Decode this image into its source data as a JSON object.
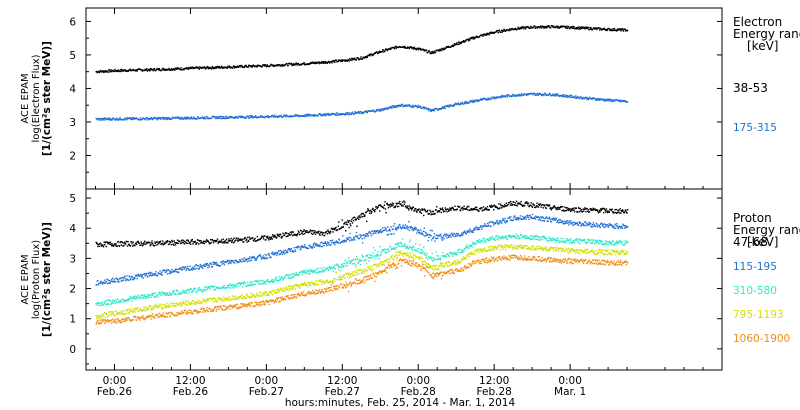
{
  "chart_data": [
    {
      "type": "scatter",
      "panel": "electron",
      "ylabel_lines": [
        "ACE EPAM",
        "log(Electron Flux)",
        "[1/(cm²s ster MeV)]"
      ],
      "ylim": [
        1,
        6.4
      ],
      "yticks": [
        2,
        3,
        4,
        5,
        6
      ],
      "legend_title": [
        "Electron",
        "Energy range",
        "[keV]"
      ],
      "legend_placement": "right",
      "series": [
        {
          "name": "38-53",
          "color": "#000000",
          "x": [
            -3,
            0,
            6,
            12,
            18,
            24,
            30,
            33,
            36,
            39,
            42,
            45,
            48,
            50,
            54,
            57,
            60,
            63,
            66,
            69,
            72,
            75,
            78,
            81
          ],
          "y": [
            4.52,
            4.55,
            4.58,
            4.62,
            4.66,
            4.7,
            4.76,
            4.8,
            4.85,
            4.93,
            5.12,
            5.28,
            5.2,
            5.08,
            5.35,
            5.55,
            5.7,
            5.8,
            5.85,
            5.86,
            5.84,
            5.81,
            5.78,
            5.76
          ]
        },
        {
          "name": "175-315",
          "color": "#1f6fd6",
          "x": [
            -3,
            0,
            6,
            12,
            18,
            24,
            30,
            33,
            36,
            39,
            42,
            45,
            48,
            50,
            54,
            57,
            60,
            63,
            66,
            69,
            72,
            75,
            78,
            81
          ],
          "y": [
            3.1,
            3.11,
            3.12,
            3.14,
            3.16,
            3.18,
            3.21,
            3.24,
            3.26,
            3.3,
            3.38,
            3.52,
            3.48,
            3.36,
            3.55,
            3.65,
            3.75,
            3.82,
            3.85,
            3.84,
            3.78,
            3.72,
            3.67,
            3.63
          ]
        }
      ]
    },
    {
      "type": "scatter",
      "panel": "proton",
      "ylabel_lines": [
        "ACE EPAM",
        "log(Proton Flux)",
        "[1/(cm²s ster MeV)]"
      ],
      "ylim": [
        -0.7,
        5.3
      ],
      "yticks": [
        0,
        1,
        2,
        3,
        4,
        5
      ],
      "legend_title": [
        "Proton",
        "Energy range",
        "[keV]"
      ],
      "legend_placement": "right",
      "series": [
        {
          "name": "47-68",
          "color": "#000000",
          "x": [
            -3,
            0,
            6,
            12,
            18,
            24,
            30,
            33,
            36,
            39,
            42,
            45,
            48,
            50,
            54,
            57,
            60,
            63,
            66,
            69,
            72,
            75,
            78,
            81
          ],
          "y": [
            3.48,
            3.5,
            3.52,
            3.56,
            3.6,
            3.7,
            3.9,
            3.85,
            4.1,
            4.45,
            4.75,
            4.8,
            4.6,
            4.55,
            4.7,
            4.65,
            4.72,
            4.85,
            4.8,
            4.7,
            4.65,
            4.62,
            4.6,
            4.58
          ]
        },
        {
          "name": "115-195",
          "color": "#1f6fd6",
          "x": [
            -3,
            0,
            6,
            12,
            18,
            24,
            30,
            33,
            36,
            39,
            42,
            45,
            48,
            50,
            54,
            57,
            60,
            63,
            66,
            69,
            72,
            75,
            78,
            81
          ],
          "y": [
            2.2,
            2.3,
            2.5,
            2.7,
            2.9,
            3.1,
            3.4,
            3.5,
            3.6,
            3.75,
            3.95,
            4.1,
            3.95,
            3.7,
            3.8,
            4.0,
            4.2,
            4.35,
            4.4,
            4.3,
            4.2,
            4.15,
            4.1,
            4.08
          ]
        },
        {
          "name": "310-580",
          "color": "#2ee6c8",
          "x": [
            -3,
            0,
            6,
            12,
            18,
            24,
            30,
            33,
            36,
            39,
            42,
            45,
            48,
            50,
            54,
            57,
            60,
            63,
            66,
            69,
            72,
            75,
            78,
            81
          ],
          "y": [
            1.5,
            1.6,
            1.8,
            1.95,
            2.1,
            2.25,
            2.55,
            2.65,
            2.8,
            3.0,
            3.2,
            3.5,
            3.3,
            3.0,
            3.2,
            3.55,
            3.7,
            3.75,
            3.72,
            3.65,
            3.6,
            3.57,
            3.54,
            3.52
          ]
        },
        {
          "name": "795-1193",
          "color": "#d2e000",
          "x": [
            -3,
            0,
            6,
            12,
            18,
            24,
            30,
            33,
            36,
            39,
            42,
            45,
            48,
            50,
            54,
            57,
            60,
            63,
            66,
            69,
            72,
            75,
            78,
            81
          ],
          "y": [
            1.1,
            1.2,
            1.4,
            1.55,
            1.7,
            1.85,
            2.15,
            2.25,
            2.4,
            2.6,
            2.85,
            3.2,
            3.05,
            2.7,
            2.9,
            3.25,
            3.38,
            3.4,
            3.38,
            3.32,
            3.27,
            3.24,
            3.22,
            3.2
          ]
        },
        {
          "name": "1060-1900",
          "color": "#f08c14",
          "x": [
            -3,
            0,
            6,
            12,
            18,
            24,
            30,
            33,
            36,
            39,
            42,
            45,
            48,
            50,
            54,
            57,
            60,
            63,
            66,
            69,
            72,
            75,
            78,
            81
          ],
          "y": [
            0.9,
            0.95,
            1.1,
            1.25,
            1.4,
            1.55,
            1.85,
            1.95,
            2.1,
            2.3,
            2.55,
            2.95,
            2.8,
            2.45,
            2.6,
            2.9,
            3.0,
            3.05,
            3.02,
            2.97,
            2.93,
            2.9,
            2.88,
            2.86
          ]
        }
      ]
    }
  ],
  "x_axis": {
    "xlim": [
      -4.5,
      96
    ],
    "ticks": [
      {
        "t": 0,
        "time": "0:00",
        "date": "Feb.26"
      },
      {
        "t": 12,
        "time": "12:00",
        "date": "Feb.26"
      },
      {
        "t": 24,
        "time": "0:00",
        "date": "Feb.27"
      },
      {
        "t": 36,
        "time": "12:00",
        "date": "Feb.27"
      },
      {
        "t": 48,
        "time": "0:00",
        "date": "Feb.28"
      },
      {
        "t": 60,
        "time": "12:00",
        "date": "Feb.28"
      },
      {
        "t": 72,
        "time": "0:00",
        "date": "Mar. 1"
      }
    ],
    "title": "hours:minutes, Feb. 25, 2014 - Mar.  1, 2014"
  }
}
